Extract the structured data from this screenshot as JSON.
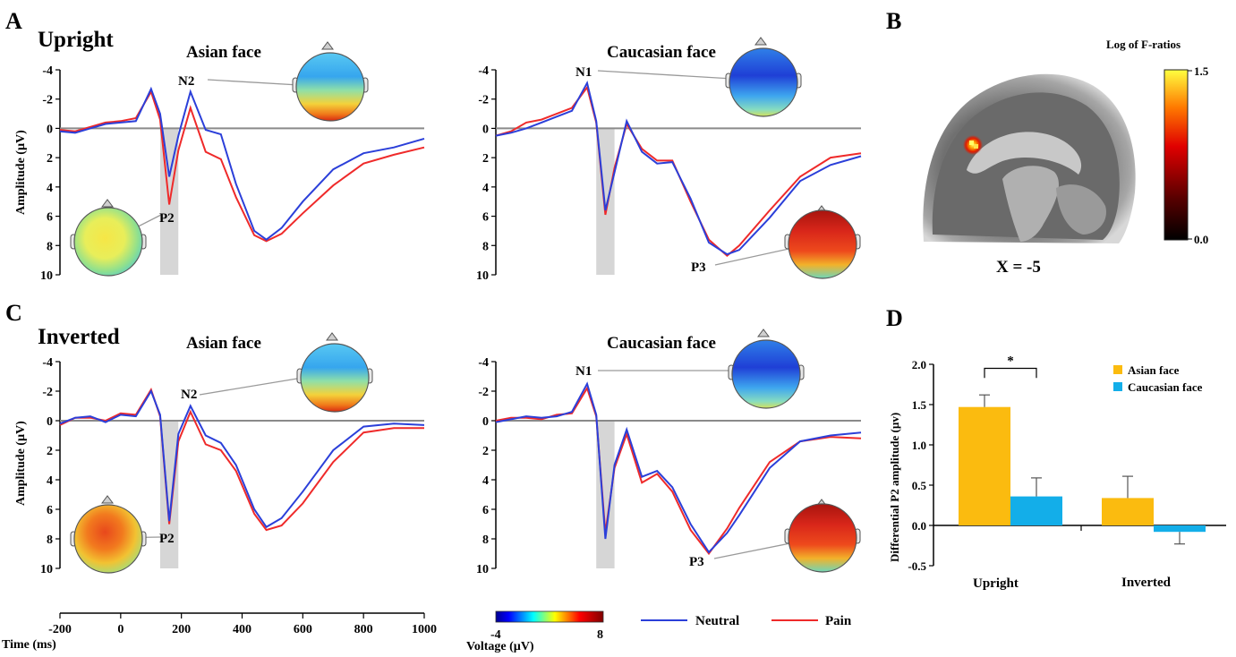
{
  "panels": {
    "A": "A",
    "B": "B",
    "C": "C",
    "D": "D",
    "upright_title": "Upright",
    "inverted_title": "Inverted",
    "asian_face": "Asian face",
    "caucasian_face": "Caucasian face"
  },
  "erp_axis": {
    "ylabel": "Amplitude (µV)",
    "yticks": [
      "-4",
      "-2",
      "0",
      "2",
      "4",
      "6",
      "8",
      "10"
    ],
    "ytick_values": [
      -4,
      -2,
      0,
      2,
      4,
      6,
      8,
      10
    ],
    "xlabel": "Time (ms)",
    "xticks": [
      "-200",
      "0",
      "200",
      "400",
      "600",
      "800",
      "1000"
    ],
    "xtick_values": [
      -200,
      0,
      200,
      400,
      600,
      800,
      1000
    ],
    "shaded_window_ms": [
      130,
      190
    ]
  },
  "components": {
    "upright_asian_top": "N2",
    "upright_asian_bottom": "P2",
    "upright_cauc_top": "N1",
    "upright_cauc_bottom": "P3",
    "inverted_asian_top": "N2",
    "inverted_asian_bottom": "P2",
    "inverted_cauc_top": "N1",
    "inverted_cauc_bottom": "P3"
  },
  "colorbar": {
    "min": "-4",
    "max": "8",
    "label": "Voltage (µV)"
  },
  "erp_legend": {
    "neutral": "Neutral",
    "pain": "Pain",
    "neutral_color": "#2b3fd9",
    "pain_color": "#ef2a2a"
  },
  "brain": {
    "title": "Log of F-ratios",
    "max": "1.5",
    "min": "0.0",
    "coordinate": "X = -5"
  },
  "chart_data": [
    {
      "type": "line",
      "panel": "A",
      "condition": "Upright",
      "face": "Asian face",
      "x": [
        -200,
        -150,
        -100,
        -50,
        0,
        50,
        100,
        130,
        160,
        190,
        230,
        280,
        330,
        380,
        440,
        480,
        530,
        600,
        700,
        800,
        900,
        1000
      ],
      "ylim": [
        -4,
        10
      ],
      "y_inverted": true,
      "series": [
        {
          "name": "Neutral",
          "values": [
            0.2,
            0.3,
            0.0,
            -0.3,
            -0.4,
            -0.5,
            -2.7,
            -1.0,
            3.3,
            0.5,
            -2.5,
            0.1,
            0.4,
            3.8,
            7.0,
            7.6,
            6.8,
            5.0,
            2.8,
            1.7,
            1.3,
            0.7
          ]
        },
        {
          "name": "Pain",
          "values": [
            0.1,
            0.2,
            -0.1,
            -0.4,
            -0.5,
            -0.7,
            -2.5,
            -0.6,
            5.2,
            1.5,
            -1.4,
            1.6,
            2.1,
            4.7,
            7.3,
            7.7,
            7.2,
            5.8,
            3.9,
            2.4,
            1.8,
            1.3
          ]
        }
      ]
    },
    {
      "type": "line",
      "panel": "A",
      "condition": "Upright",
      "face": "Caucasian face",
      "x": [
        -200,
        -150,
        -100,
        -50,
        0,
        50,
        100,
        130,
        160,
        190,
        230,
        280,
        330,
        380,
        440,
        500,
        560,
        600,
        700,
        800,
        900,
        1000
      ],
      "ylim": [
        -4,
        10
      ],
      "y_inverted": true,
      "series": [
        {
          "name": "Neutral",
          "values": [
            0.5,
            0.3,
            0.0,
            -0.4,
            -0.8,
            -1.2,
            -3.1,
            -0.5,
            5.6,
            3.0,
            -0.5,
            1.6,
            2.4,
            2.3,
            4.8,
            7.8,
            8.6,
            8.3,
            6.1,
            3.6,
            2.5,
            1.9
          ]
        },
        {
          "name": "Pain",
          "values": [
            0.5,
            0.2,
            -0.4,
            -0.6,
            -1.0,
            -1.4,
            -2.8,
            -0.4,
            5.9,
            2.7,
            -0.3,
            1.4,
            2.2,
            2.2,
            5.0,
            7.6,
            8.7,
            8.0,
            5.6,
            3.3,
            2.0,
            1.7
          ]
        }
      ]
    },
    {
      "type": "line",
      "panel": "C",
      "condition": "Inverted",
      "face": "Asian face",
      "x": [
        -200,
        -150,
        -100,
        -50,
        0,
        50,
        100,
        130,
        160,
        190,
        230,
        280,
        330,
        380,
        440,
        480,
        530,
        600,
        700,
        800,
        900,
        1000
      ],
      "ylim": [
        -4,
        10
      ],
      "y_inverted": true,
      "series": [
        {
          "name": "Neutral",
          "values": [
            0.2,
            -0.2,
            -0.3,
            0.1,
            -0.4,
            -0.3,
            -2.0,
            -0.4,
            6.8,
            0.9,
            -1.0,
            1.0,
            1.5,
            3.0,
            6.0,
            7.2,
            6.6,
            4.8,
            2.0,
            0.4,
            0.2,
            0.3
          ]
        },
        {
          "name": "Pain",
          "values": [
            0.3,
            -0.2,
            -0.2,
            0.0,
            -0.5,
            -0.4,
            -2.1,
            -0.3,
            7.0,
            1.4,
            -0.6,
            1.6,
            2.0,
            3.4,
            6.3,
            7.4,
            7.1,
            5.6,
            2.8,
            0.8,
            0.5,
            0.5
          ]
        }
      ]
    },
    {
      "type": "line",
      "panel": "C",
      "condition": "Inverted",
      "face": "Caucasian face",
      "x": [
        -200,
        -150,
        -100,
        -50,
        0,
        50,
        100,
        130,
        160,
        190,
        230,
        280,
        330,
        380,
        440,
        500,
        560,
        600,
        700,
        800,
        900,
        1000
      ],
      "ylim": [
        -4,
        10
      ],
      "y_inverted": true,
      "series": [
        {
          "name": "Neutral",
          "values": [
            0.1,
            -0.1,
            -0.3,
            -0.2,
            -0.3,
            -0.6,
            -2.5,
            -0.4,
            8.0,
            3.0,
            0.6,
            3.8,
            3.4,
            4.5,
            7.0,
            8.9,
            7.6,
            6.4,
            3.2,
            1.4,
            1.0,
            0.8
          ]
        },
        {
          "name": "Pain",
          "values": [
            0.0,
            -0.2,
            -0.2,
            -0.1,
            -0.4,
            -0.5,
            -2.2,
            -0.3,
            7.6,
            3.2,
            0.9,
            4.2,
            3.6,
            4.8,
            7.4,
            9.0,
            7.3,
            5.9,
            2.8,
            1.4,
            1.1,
            1.2
          ]
        }
      ]
    },
    {
      "type": "bar",
      "panel": "D",
      "categories": [
        "Upright",
        "Inverted"
      ],
      "ylabel": "Differential P2 amplitude (µv)",
      "ylim": [
        -0.5,
        2.0
      ],
      "yticks": [
        "-0.5",
        "0.0",
        "0.5",
        "1.0",
        "1.5",
        "2.0"
      ],
      "ytick_values": [
        -0.5,
        0.0,
        0.5,
        1.0,
        1.5,
        2.0
      ],
      "series": [
        {
          "name": "Asian face",
          "color": "#fbbb0f",
          "values": [
            1.47,
            0.34
          ],
          "errors": [
            0.15,
            0.27
          ]
        },
        {
          "name": "Caucasian face",
          "color": "#13aee9",
          "values": [
            0.36,
            -0.08
          ],
          "errors": [
            0.23,
            0.15
          ]
        }
      ],
      "annotation": "*"
    }
  ]
}
